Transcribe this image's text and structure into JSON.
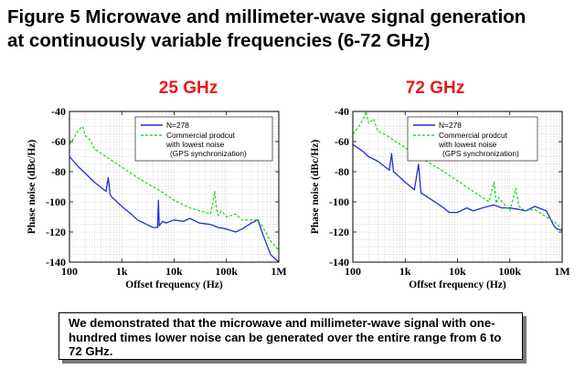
{
  "figure": {
    "title_line1": "Figure 5 Microwave and millimeter-wave signal generation",
    "title_line2": "at continuously variable frequencies (6-72 GHz)"
  },
  "summary": {
    "text": "We demonstrated that the microwave and millimeter-wave signal with one-hundred times lower noise can be generated over the entire range from 6 to 72 GHz."
  },
  "colors": {
    "series1": "#1f2fd4",
    "series2": "#22dd22",
    "panel_title": "#e81a1a"
  },
  "chart_data": [
    {
      "type": "line",
      "title": "25 GHz",
      "xlabel": "Offset frequency (Hz)",
      "ylabel": "Phase noise (dBc/Hz)",
      "x_scale": "log",
      "xlim": [
        100,
        1000000
      ],
      "ylim": [
        -140,
        -40
      ],
      "x_ticks": [
        "100",
        "1k",
        "10k",
        "100k",
        "1M"
      ],
      "y_ticks": [
        "-40",
        "-60",
        "-80",
        "-100",
        "-120",
        "-140"
      ],
      "grid": true,
      "legend_position": "top-right",
      "legend": [
        "N=278",
        "Commercial prodcut",
        "with lowest noise",
        "(GPS synchronization)"
      ],
      "series": [
        {
          "name": "N=278",
          "x": [
            100,
            150,
            200,
            300,
            500,
            550,
            600,
            650,
            700,
            1000,
            1500,
            2000,
            3000,
            4000,
            4800,
            5000,
            5200,
            6000,
            7000,
            10000,
            15000,
            20000,
            30000,
            50000,
            70000,
            100000,
            150000,
            200000,
            300000,
            400000,
            500000,
            700000,
            1000000
          ],
          "y": [
            -70,
            -77,
            -81,
            -87,
            -93,
            -84,
            -95,
            -97,
            -98,
            -103,
            -108,
            -112,
            -115,
            -117,
            -117,
            -99,
            -116,
            -113,
            -114,
            -112,
            -113,
            -111,
            -114,
            -115,
            -117,
            -118,
            -120,
            -118,
            -114,
            -112,
            -122,
            -135,
            -140
          ]
        },
        {
          "name": "Commercial prodcut",
          "x": [
            100,
            120,
            150,
            180,
            200,
            250,
            300,
            500,
            1000,
            2000,
            5000,
            10000,
            20000,
            50000,
            60000,
            65000,
            70000,
            80000,
            100000,
            150000,
            200000,
            300000,
            400000,
            500000,
            700000,
            1000000
          ],
          "y": [
            -62,
            -58,
            -52,
            -50,
            -56,
            -59,
            -65,
            -70,
            -77,
            -84,
            -92,
            -99,
            -104,
            -108,
            -93,
            -105,
            -109,
            -106,
            -110,
            -108,
            -112,
            -112,
            -112,
            -117,
            -126,
            -132
          ]
        }
      ]
    },
    {
      "type": "line",
      "title": "72 GHz",
      "xlabel": "Offset frequency (Hz)",
      "ylabel": "Phase noise (dBc/Hz)",
      "x_scale": "log",
      "xlim": [
        100,
        1000000
      ],
      "ylim": [
        -140,
        -40
      ],
      "x_ticks": [
        "100",
        "1k",
        "10k",
        "100k",
        "1M"
      ],
      "y_ticks": [
        "-40",
        "-60",
        "-80",
        "-100",
        "-120",
        "-140"
      ],
      "grid": true,
      "legend_position": "top-right",
      "legend": [
        "N=278",
        "Commercial prodcut",
        "with lowest noise",
        "(GPS synchronization)"
      ],
      "series": [
        {
          "name": "N=278",
          "x": [
            100,
            150,
            200,
            300,
            500,
            550,
            600,
            700,
            1000,
            1500,
            1800,
            2000,
            3000,
            5000,
            7000,
            10000,
            15000,
            20000,
            30000,
            50000,
            70000,
            100000,
            150000,
            200000,
            300000,
            500000,
            700000,
            800000,
            1000000
          ],
          "y": [
            -62,
            -66,
            -70,
            -73,
            -79,
            -68,
            -80,
            -82,
            -87,
            -92,
            -75,
            -94,
            -98,
            -103,
            -107,
            -107,
            -104,
            -106,
            -104,
            -102,
            -104,
            -104,
            -105,
            -106,
            -103,
            -106,
            -116,
            -118,
            -119
          ]
        },
        {
          "name": "Commercial prodcut",
          "x": [
            100,
            130,
            160,
            180,
            200,
            250,
            300,
            400,
            1000,
            2000,
            5000,
            10000,
            20000,
            40000,
            50000,
            55000,
            60000,
            80000,
            100000,
            130000,
            150000,
            200000,
            300000,
            500000,
            700000,
            1000000
          ],
          "y": [
            -55,
            -50,
            -45,
            -40,
            -48,
            -45,
            -53,
            -55,
            -64,
            -71,
            -79,
            -86,
            -93,
            -100,
            -87,
            -101,
            -97,
            -102,
            -106,
            -91,
            -103,
            -106,
            -105,
            -110,
            -113,
            -118
          ]
        }
      ]
    }
  ]
}
